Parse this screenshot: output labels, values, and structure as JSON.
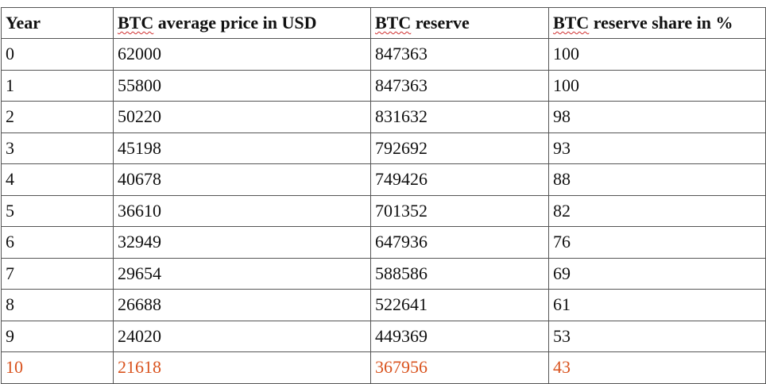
{
  "table": {
    "headers": [
      {
        "prefix": "",
        "marked": "",
        "suffix": "Year"
      },
      {
        "prefix": "",
        "marked": "BTC",
        "suffix": " average price in USD"
      },
      {
        "prefix": "",
        "marked": "BTC",
        "suffix": " reserve"
      },
      {
        "prefix": "",
        "marked": "BTC",
        "suffix": " reserve share in %"
      }
    ],
    "rows": [
      [
        "0",
        "62000",
        "847363",
        "100"
      ],
      [
        "1",
        "55800",
        "847363",
        "100"
      ],
      [
        "2",
        "50220",
        "831632",
        "98"
      ],
      [
        "3",
        "45198",
        "792692",
        "93"
      ],
      [
        "4",
        "40678",
        "749426",
        "88"
      ],
      [
        "5",
        "36610",
        "701352",
        "82"
      ],
      [
        "6",
        "32949",
        "647936",
        "76"
      ],
      [
        "7",
        "29654",
        "588586",
        "69"
      ],
      [
        "8",
        "26688",
        "522641",
        "61"
      ],
      [
        "9",
        "24020",
        "449369",
        "53"
      ],
      [
        "10",
        "21618",
        "367956",
        "43"
      ]
    ],
    "highlight_color": "#d9531e",
    "spellcheck_underline_color": "#d03030"
  }
}
